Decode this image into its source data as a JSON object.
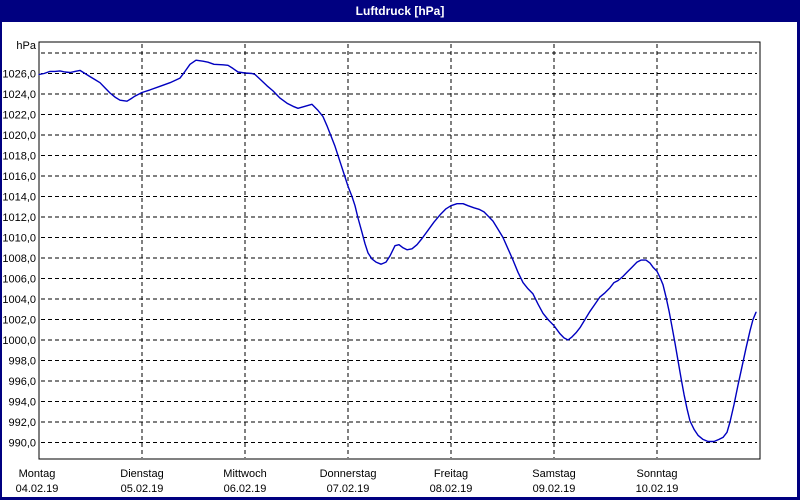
{
  "window": {
    "title": "Luftdruck [hPa]"
  },
  "colors": {
    "title_bar_bg": "#000080",
    "title_text": "#ffffff",
    "window_border": "#000080",
    "client_bg": "#ffffff",
    "plot_border": "#000000",
    "gridline": "#000000",
    "axis_text": "#000000",
    "line": "#0000c0"
  },
  "chart_data": {
    "type": "line",
    "title": "Luftdruck [hPa]",
    "grid": "dashed",
    "legend": "none",
    "y_axis": {
      "unit_label": "hPa",
      "gridline_min": 990,
      "gridline_max": 1028,
      "gridline_step": 2,
      "labeled_min": 990,
      "labeled_max": 1026,
      "decimal_separator": ",",
      "tick_labels": [
        "1026,0",
        "1024,0",
        "1022,0",
        "1020,0",
        "1018,0",
        "1016,0",
        "1014,0",
        "1012,0",
        "1010,0",
        "1008,0",
        "1006,0",
        "1004,0",
        "1002,0",
        "1000,0",
        "998,0",
        "996,0",
        "994,0",
        "992,0",
        "990,0"
      ]
    },
    "x_axis": {
      "days": [
        {
          "label": "Montag",
          "date": "04.02.19"
        },
        {
          "label": "Dienstag",
          "date": "05.02.19"
        },
        {
          "label": "Mittwoch",
          "date": "06.02.19"
        },
        {
          "label": "Donnerstag",
          "date": "07.02.19"
        },
        {
          "label": "Freitag",
          "date": "08.02.19"
        },
        {
          "label": "Samstag",
          "date": "09.02.19"
        },
        {
          "label": "Sonntag",
          "date": "10.02.19"
        }
      ]
    },
    "series": [
      {
        "name": "Luftdruck",
        "color": "#0000c0",
        "points": [
          [
            0.0,
            1025.9
          ],
          [
            0.05,
            1026.0
          ],
          [
            0.107,
            1026.2
          ],
          [
            0.155,
            1026.2
          ],
          [
            0.204,
            1026.25
          ],
          [
            0.252,
            1026.15
          ],
          [
            0.301,
            1026.1
          ],
          [
            0.35,
            1026.2
          ],
          [
            0.398,
            1026.3
          ],
          [
            0.447,
            1026.0
          ],
          [
            0.495,
            1025.7
          ],
          [
            0.544,
            1025.4
          ],
          [
            0.592,
            1025.1
          ],
          [
            0.641,
            1024.6
          ],
          [
            0.689,
            1024.1
          ],
          [
            0.738,
            1023.7
          ],
          [
            0.786,
            1023.4
          ],
          [
            0.854,
            1023.3
          ],
          [
            0.903,
            1023.6
          ],
          [
            0.932,
            1023.8
          ],
          [
            1.0,
            1024.15
          ],
          [
            1.078,
            1024.4
          ],
          [
            1.175,
            1024.75
          ],
          [
            1.272,
            1025.1
          ],
          [
            1.369,
            1025.55
          ],
          [
            1.417,
            1026.2
          ],
          [
            1.466,
            1026.9
          ],
          [
            1.524,
            1027.3
          ],
          [
            1.592,
            1027.2
          ],
          [
            1.641,
            1027.1
          ],
          [
            1.699,
            1026.9
          ],
          [
            1.786,
            1026.85
          ],
          [
            1.835,
            1026.8
          ],
          [
            1.883,
            1026.5
          ],
          [
            1.932,
            1026.15
          ],
          [
            2.0,
            1026.05
          ],
          [
            2.068,
            1026.0
          ],
          [
            2.097,
            1025.9
          ],
          [
            2.146,
            1025.45
          ],
          [
            2.214,
            1024.8
          ],
          [
            2.272,
            1024.3
          ],
          [
            2.34,
            1023.6
          ],
          [
            2.408,
            1023.1
          ],
          [
            2.466,
            1022.8
          ],
          [
            2.515,
            1022.6
          ],
          [
            2.583,
            1022.8
          ],
          [
            2.65,
            1023.0
          ],
          [
            2.709,
            1022.4
          ],
          [
            2.757,
            1021.8
          ],
          [
            2.796,
            1020.9
          ],
          [
            2.835,
            1019.9
          ],
          [
            2.874,
            1018.9
          ],
          [
            2.903,
            1018.0
          ],
          [
            2.932,
            1017.1
          ],
          [
            2.961,
            1016.2
          ],
          [
            3.0,
            1015.0
          ],
          [
            3.039,
            1014.0
          ],
          [
            3.068,
            1013.1
          ],
          [
            3.097,
            1011.9
          ],
          [
            3.136,
            1010.5
          ],
          [
            3.165,
            1009.4
          ],
          [
            3.194,
            1008.5
          ],
          [
            3.233,
            1007.9
          ],
          [
            3.272,
            1007.6
          ],
          [
            3.32,
            1007.4
          ],
          [
            3.369,
            1007.6
          ],
          [
            3.408,
            1008.2
          ],
          [
            3.456,
            1009.2
          ],
          [
            3.495,
            1009.3
          ],
          [
            3.534,
            1009.0
          ],
          [
            3.573,
            1008.8
          ],
          [
            3.621,
            1008.9
          ],
          [
            3.67,
            1009.3
          ],
          [
            3.718,
            1009.9
          ],
          [
            3.777,
            1010.7
          ],
          [
            3.835,
            1011.5
          ],
          [
            3.893,
            1012.2
          ],
          [
            3.951,
            1012.8
          ],
          [
            4.0,
            1013.1
          ],
          [
            4.058,
            1013.3
          ],
          [
            4.117,
            1013.3
          ],
          [
            4.165,
            1013.1
          ],
          [
            4.223,
            1012.9
          ],
          [
            4.272,
            1012.75
          ],
          [
            4.32,
            1012.5
          ],
          [
            4.369,
            1012.0
          ],
          [
            4.408,
            1011.6
          ],
          [
            4.456,
            1010.8
          ],
          [
            4.505,
            1010.0
          ],
          [
            4.553,
            1008.9
          ],
          [
            4.602,
            1007.8
          ],
          [
            4.65,
            1006.6
          ],
          [
            4.699,
            1005.6
          ],
          [
            4.748,
            1005.0
          ],
          [
            4.796,
            1004.5
          ],
          [
            4.845,
            1003.5
          ],
          [
            4.893,
            1002.6
          ],
          [
            4.942,
            1002.0
          ],
          [
            5.0,
            1001.4
          ],
          [
            5.058,
            1000.6
          ],
          [
            5.097,
            1000.2
          ],
          [
            5.136,
            1000.0
          ],
          [
            5.175,
            1000.3
          ],
          [
            5.214,
            1000.7
          ],
          [
            5.252,
            1001.2
          ],
          [
            5.301,
            1002.0
          ],
          [
            5.35,
            1002.8
          ],
          [
            5.398,
            1003.5
          ],
          [
            5.447,
            1004.2
          ],
          [
            5.495,
            1004.6
          ],
          [
            5.544,
            1005.1
          ],
          [
            5.583,
            1005.6
          ],
          [
            5.621,
            1005.8
          ],
          [
            5.67,
            1006.2
          ],
          [
            5.709,
            1006.6
          ],
          [
            5.757,
            1007.1
          ],
          [
            5.806,
            1007.6
          ],
          [
            5.845,
            1007.8
          ],
          [
            5.893,
            1007.8
          ],
          [
            5.932,
            1007.5
          ],
          [
            5.961,
            1007.1
          ],
          [
            6.0,
            1006.7
          ],
          [
            6.029,
            1006.1
          ],
          [
            6.058,
            1005.4
          ],
          [
            6.087,
            1004.2
          ],
          [
            6.117,
            1002.8
          ],
          [
            6.146,
            1001.3
          ],
          [
            6.175,
            999.7
          ],
          [
            6.204,
            998.0
          ],
          [
            6.233,
            996.3
          ],
          [
            6.262,
            994.7
          ],
          [
            6.291,
            993.3
          ],
          [
            6.32,
            992.1
          ],
          [
            6.359,
            991.3
          ],
          [
            6.398,
            990.7
          ],
          [
            6.447,
            990.3
          ],
          [
            6.495,
            990.1
          ],
          [
            6.553,
            990.1
          ],
          [
            6.602,
            990.3
          ],
          [
            6.641,
            990.5
          ],
          [
            6.68,
            991.0
          ],
          [
            6.709,
            992.0
          ],
          [
            6.748,
            993.7
          ],
          [
            6.786,
            995.6
          ],
          [
            6.825,
            997.4
          ],
          [
            6.864,
            999.2
          ],
          [
            6.903,
            1000.9
          ],
          [
            6.932,
            1002.0
          ],
          [
            6.961,
            1002.7
          ]
        ]
      }
    ]
  }
}
